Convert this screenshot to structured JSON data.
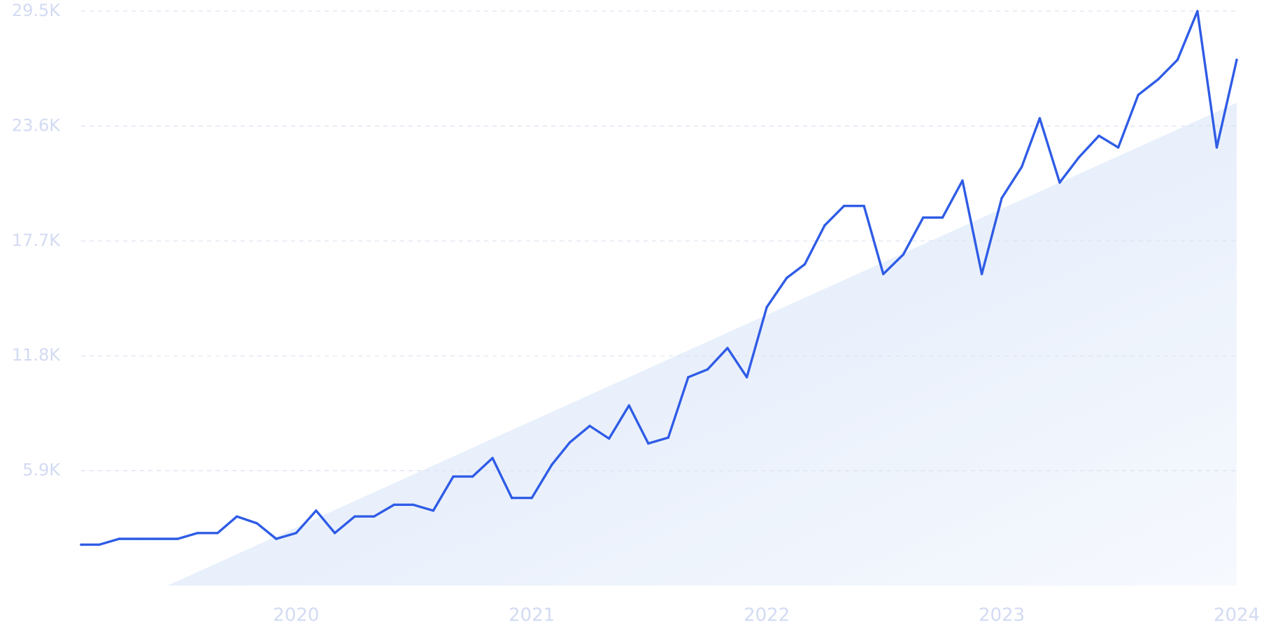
{
  "chart_data": {
    "type": "line",
    "title": "",
    "xlabel": "",
    "ylabel": "",
    "grid": true,
    "colors": {
      "line": "#2f5ce6",
      "trend_fill_start": "#dbe6f8",
      "trend_fill_end": "#f6f9fe",
      "grid": "#dbe3f2",
      "tick_label": "#d3dbf3"
    },
    "ylim": [
      0,
      29500
    ],
    "y_ticks": [
      {
        "value": 5900,
        "label": "5.9K"
      },
      {
        "value": 11800,
        "label": "11.8K"
      },
      {
        "value": 17700,
        "label": "17.7K"
      },
      {
        "value": 23600,
        "label": "23.6K"
      },
      {
        "value": 29500,
        "label": "29.5K"
      }
    ],
    "x_range": [
      "2019-02-01",
      "2024-01-01"
    ],
    "x_ticks": [
      {
        "value": "2020-01-01",
        "label": "2020"
      },
      {
        "value": "2021-01-01",
        "label": "2021"
      },
      {
        "value": "2022-01-01",
        "label": "2022"
      },
      {
        "value": "2023-01-01",
        "label": "2023"
      },
      {
        "value": "2024-01-01",
        "label": "2024"
      }
    ],
    "trend": {
      "start": {
        "x": "2019-06-15",
        "y": 0
      },
      "end": {
        "x": "2024-01-01",
        "y": 24800
      }
    },
    "series": [
      {
        "x": [
          "2019-02-01",
          "2019-03-01",
          "2019-04-01",
          "2019-05-01",
          "2019-06-01",
          "2019-07-01",
          "2019-08-01",
          "2019-09-01",
          "2019-10-01",
          "2019-11-01",
          "2019-12-01",
          "2020-01-01",
          "2020-02-01",
          "2020-03-01",
          "2020-04-01",
          "2020-05-01",
          "2020-06-01",
          "2020-07-01",
          "2020-08-01",
          "2020-09-01",
          "2020-10-01",
          "2020-11-01",
          "2020-12-01",
          "2021-01-01",
          "2021-02-01",
          "2021-03-01",
          "2021-04-01",
          "2021-05-01",
          "2021-06-01",
          "2021-07-01",
          "2021-08-01",
          "2021-09-01",
          "2021-10-01",
          "2021-11-01",
          "2021-12-01",
          "2022-01-01",
          "2022-02-01",
          "2022-03-01",
          "2022-04-01",
          "2022-05-01",
          "2022-06-01",
          "2022-07-01",
          "2022-08-01",
          "2022-09-01",
          "2022-10-01",
          "2022-11-01",
          "2022-12-01",
          "2023-01-01",
          "2023-02-01",
          "2023-03-01",
          "2023-04-01",
          "2023-05-01",
          "2023-06-01",
          "2023-07-01",
          "2023-08-01",
          "2023-09-01",
          "2023-10-01",
          "2023-11-01",
          "2023-12-01",
          "2024-01-01"
        ],
        "values": [
          2100,
          2100,
          2400,
          2400,
          2400,
          2400,
          2700,
          2700,
          3550,
          3200,
          2400,
          2700,
          3850,
          2700,
          3550,
          3550,
          4150,
          4150,
          3850,
          5600,
          5600,
          6550,
          4500,
          4500,
          6200,
          7350,
          8200,
          7550,
          9250,
          7300,
          7600,
          10700,
          11100,
          12200,
          10700,
          14300,
          15800,
          16500,
          18500,
          19500,
          19500,
          16000,
          17000,
          18900,
          18900,
          20800,
          16000,
          19900,
          21500,
          24000,
          20700,
          22000,
          23100,
          22500,
          25200,
          26000,
          27000,
          29500,
          22500,
          27000
        ]
      }
    ]
  }
}
